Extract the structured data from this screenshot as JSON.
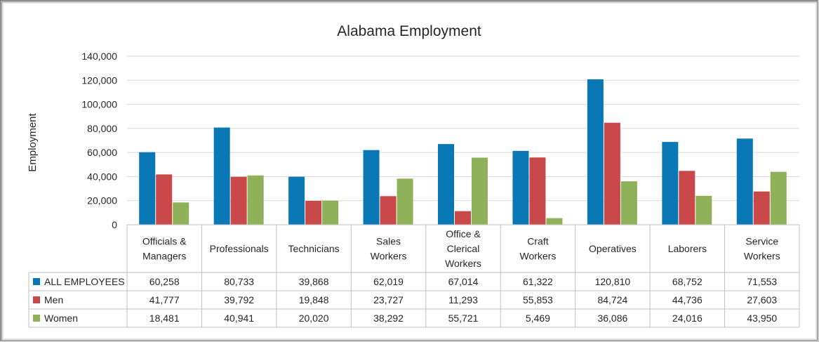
{
  "chart_data": {
    "type": "bar",
    "title": "Alabama Employment",
    "ylabel": "Employment",
    "xlabel": "",
    "ylim": [
      0,
      140000
    ],
    "yticks": [
      0,
      20000,
      40000,
      60000,
      80000,
      100000,
      120000,
      140000
    ],
    "ytick_labels": [
      "0",
      "20,000",
      "40,000",
      "60,000",
      "80,000",
      "100,000",
      "120,000",
      "140,000"
    ],
    "grid": true,
    "legend": "data-table",
    "categories": [
      [
        "Officials &",
        "Managers"
      ],
      [
        "Professionals"
      ],
      [
        "Technicians"
      ],
      [
        "Sales",
        "Workers"
      ],
      [
        "Office &",
        "Clerical",
        "Workers"
      ],
      [
        "Craft",
        "Workers"
      ],
      [
        "Operatives"
      ],
      [
        "Laborers"
      ],
      [
        "Service",
        "Workers"
      ]
    ],
    "series": [
      {
        "name": "ALL EMPLOYEES",
        "color": "#0a78b5",
        "values": [
          60258,
          80733,
          39868,
          62019,
          67014,
          61322,
          120810,
          68752,
          71553
        ],
        "labels": [
          "60,258",
          "80,733",
          "39,868",
          "62,019",
          "67,014",
          "61,322",
          "120,810",
          "68,752",
          "71,553"
        ]
      },
      {
        "name": "Men",
        "color": "#c9484a",
        "values": [
          41777,
          39792,
          19848,
          23727,
          11293,
          55853,
          84724,
          44736,
          27603
        ],
        "labels": [
          "41,777",
          "39,792",
          "19,848",
          "23,727",
          "11,293",
          "55,853",
          "84,724",
          "44,736",
          "27,603"
        ]
      },
      {
        "name": "Women",
        "color": "#8fb15a",
        "values": [
          18481,
          40941,
          20020,
          38292,
          55721,
          5469,
          36086,
          24016,
          43950
        ],
        "labels": [
          "18,481",
          "40,941",
          "20,020",
          "38,292",
          "55,721",
          "5,469",
          "36,086",
          "24,016",
          "43,950"
        ]
      }
    ]
  }
}
